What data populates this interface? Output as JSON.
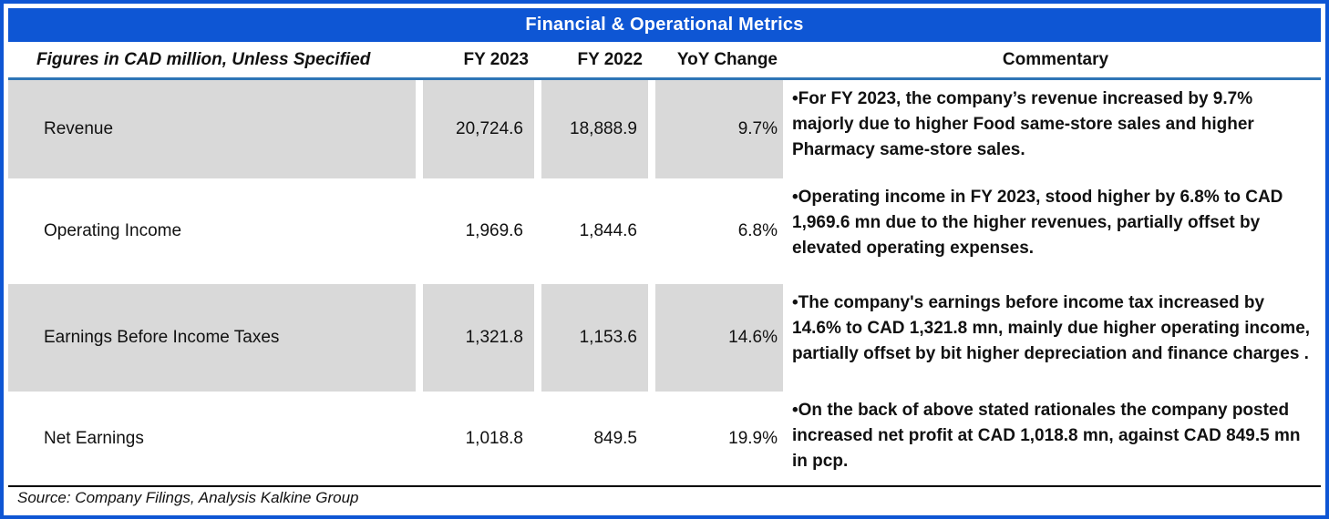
{
  "header": {
    "title": "Financial & Operational Metrics",
    "col_metric": "Figures in CAD million, Unless Specified",
    "col_fy2023": "FY 2023",
    "col_fy2022": "FY 2022",
    "col_yoy": "YoY Change",
    "col_commentary": "Commentary"
  },
  "rows": [
    {
      "label": "Revenue",
      "fy2023": "20,724.6",
      "fy2022": "18,888.9",
      "yoy": "9.7%",
      "commentary": "•For FY 2023, the company’s revenue increased by 9.7% majorly due to higher  Food same-store sales and higher Pharmacy same-store sales.",
      "shaded": true
    },
    {
      "label": "Operating Income",
      "fy2023": "1,969.6",
      "fy2022": "1,844.6",
      "yoy": "6.8%",
      "commentary": "•Operating income in FY 2023, stood higher by 6.8% to CAD 1,969.6 mn due to the higher revenues, partially offset by elevated operating expenses.",
      "shaded": false
    },
    {
      "label": "Earnings Before Income Taxes",
      "fy2023": "1,321.8",
      "fy2022": "1,153.6",
      "yoy": "14.6%",
      "commentary": "•The company's earnings before income tax increased by 14.6% to CAD 1,321.8 mn, mainly due higher operating income, partially offset by bit higher depreciation and finance charges .",
      "shaded": true
    },
    {
      "label": "Net Earnings",
      "fy2023": "1,018.8",
      "fy2022": "849.5",
      "yoy": "19.9%",
      "commentary": "•On the back of above stated rationales the company posted increased net profit at CAD 1,018.8 mn, against CAD 849.5 mn in pcp.",
      "shaded": false
    }
  ],
  "footer": {
    "source": "Source: Company Filings, Analysis Kalkine Group"
  },
  "colors": {
    "title_bar": "#0E56D4",
    "outer_border": "#0E56D4",
    "header_divider": "#2E75B6",
    "row_shade": "#D9D9D9",
    "source_rule": "#000000",
    "title_text": "#FFFFFF",
    "body_text": "#111111"
  },
  "chart_data": {
    "type": "table",
    "title": "Financial & Operational Metrics",
    "units_note": "Figures in CAD million, Unless Specified",
    "columns": [
      "Figures in CAD million, Unless Specified",
      "FY 2023",
      "FY 2022",
      "YoY Change",
      "Commentary"
    ],
    "rows": [
      [
        "Revenue",
        20724.6,
        18888.9,
        "9.7%",
        "For FY 2023, the company’s revenue increased by 9.7% majorly due to higher Food same-store sales and higher Pharmacy same-store sales."
      ],
      [
        "Operating Income",
        1969.6,
        1844.6,
        "6.8%",
        "Operating income in FY 2023, stood higher by 6.8% to CAD 1,969.6 mn due to the higher revenues, partially offset by elevated operating expenses."
      ],
      [
        "Earnings Before Income Taxes",
        1321.8,
        1153.6,
        "14.6%",
        "The company's earnings before income tax increased by 14.6% to CAD 1,321.8 mn, mainly due higher operating income, partially offset by bit higher depreciation and finance charges."
      ],
      [
        "Net Earnings",
        1018.8,
        849.5,
        "19.9%",
        "On the back of above stated rationales the company posted increased net profit at CAD 1,018.8 mn, against CAD 849.5 mn in pcp."
      ]
    ],
    "source": "Source: Company Filings, Analysis Kalkine Group"
  }
}
